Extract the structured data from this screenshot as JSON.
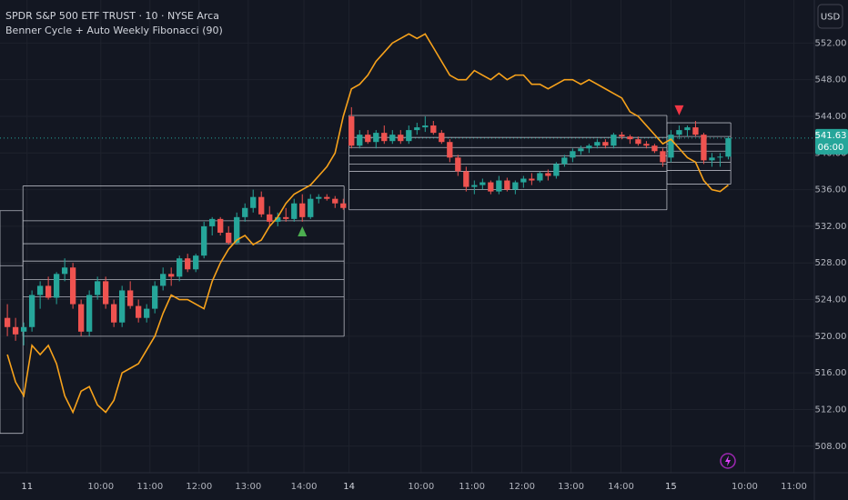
{
  "chart_data": {
    "type": "candlestick",
    "title": "SPDR S&P 500 ETF TRUST · 10 · NYSE Arca",
    "subtitle": "Benner Cycle + Auto Weekly Fibonacci (90)",
    "currency": "USD",
    "up_color": "#26a69a",
    "down_color": "#ef5350",
    "x": [
      0,
      1,
      2,
      3,
      4,
      5,
      6,
      7,
      8,
      9,
      10,
      11,
      12,
      13,
      14,
      15,
      16,
      17,
      18,
      19,
      20,
      21,
      22,
      23,
      24,
      25,
      26,
      27,
      28,
      29,
      30,
      31,
      32,
      33,
      34,
      35,
      36,
      37,
      38,
      39,
      40,
      41,
      42,
      43,
      44,
      45,
      46,
      47,
      48,
      49,
      50,
      51,
      52,
      53,
      54,
      55,
      56,
      57,
      58,
      59,
      60,
      61,
      62,
      63,
      64,
      65,
      66,
      67,
      68,
      69,
      70,
      71,
      72,
      73,
      74,
      75,
      76,
      77,
      78,
      79,
      80,
      81,
      82,
      83,
      84,
      85,
      86,
      87,
      88
    ],
    "ohlc": [
      [
        522,
        523.5,
        520,
        521
      ],
      [
        521,
        522,
        519.5,
        520.2
      ],
      [
        520.5,
        521.5,
        519,
        521
      ],
      [
        521,
        525,
        520.5,
        524.5
      ],
      [
        524.5,
        526,
        523,
        525.5
      ],
      [
        525.5,
        526.5,
        524,
        524.2
      ],
      [
        524.2,
        527,
        523.5,
        526.8
      ],
      [
        526.8,
        528.5,
        526,
        527.5
      ],
      [
        527.5,
        528,
        523,
        523.5
      ],
      [
        523.5,
        524,
        520,
        520.5
      ],
      [
        520.5,
        525,
        520,
        524.5
      ],
      [
        524.5,
        526.5,
        524,
        526
      ],
      [
        526,
        526.5,
        523,
        523.5
      ],
      [
        523.5,
        524,
        521,
        521.5
      ],
      [
        521.5,
        525.5,
        521,
        525
      ],
      [
        525,
        526,
        523,
        523.3
      ],
      [
        523.3,
        524,
        521.5,
        522
      ],
      [
        522,
        523.5,
        521.5,
        523
      ],
      [
        523,
        526,
        522.5,
        525.5
      ],
      [
        525.5,
        527.5,
        525,
        526.8
      ],
      [
        526.8,
        527.5,
        525.5,
        526.5
      ],
      [
        526.5,
        528.8,
        526,
        528.5
      ],
      [
        528.5,
        529,
        527,
        527.3
      ],
      [
        527.3,
        529,
        527,
        528.8
      ],
      [
        528.8,
        532.5,
        528.5,
        532
      ],
      [
        532,
        533,
        531,
        532.8
      ],
      [
        532.8,
        533,
        531,
        531.3
      ],
      [
        531.3,
        532,
        530,
        530.2
      ],
      [
        530.2,
        533.5,
        530,
        533
      ],
      [
        533,
        534.5,
        532.5,
        534
      ],
      [
        534,
        536,
        533.5,
        535.2
      ],
      [
        535.2,
        535.8,
        533,
        533.3
      ],
      [
        533.3,
        534.2,
        532,
        532.5
      ],
      [
        532.5,
        533.5,
        532,
        533
      ],
      [
        533,
        534,
        532.5,
        532.8
      ],
      [
        532.8,
        535,
        532.5,
        534.5
      ],
      [
        534.5,
        535.5,
        532.5,
        533
      ],
      [
        533,
        535.5,
        532.8,
        535
      ],
      [
        535,
        535.5,
        534.5,
        535.2
      ],
      [
        535.2,
        535.5,
        534.8,
        535
      ],
      [
        535,
        535.3,
        534,
        534.5
      ],
      [
        534.5,
        535,
        533.8,
        534
      ],
      [
        544,
        545,
        540.5,
        540.8
      ],
      [
        540.8,
        542.5,
        540.5,
        542
      ],
      [
        542,
        542.5,
        541,
        541.2
      ],
      [
        541.2,
        542.5,
        540.5,
        542.2
      ],
      [
        542.2,
        543,
        541,
        541.3
      ],
      [
        541.3,
        542.5,
        541,
        542
      ],
      [
        542,
        542.5,
        541,
        541.3
      ],
      [
        541.3,
        543,
        541,
        542.5
      ],
      [
        542.5,
        543.3,
        542,
        542.8
      ],
      [
        542.8,
        544,
        542.3,
        543
      ],
      [
        543,
        543.5,
        542,
        542.2
      ],
      [
        542.2,
        542.5,
        541,
        541.2
      ],
      [
        541.2,
        541.5,
        539,
        539.5
      ],
      [
        539.5,
        539.8,
        537.5,
        538
      ],
      [
        538,
        538.5,
        535.8,
        536.3
      ],
      [
        536.3,
        537,
        535.5,
        536.5
      ],
      [
        536.5,
        537.2,
        536,
        536.8
      ],
      [
        536.8,
        537,
        535.5,
        535.8
      ],
      [
        535.8,
        537.5,
        535.5,
        537
      ],
      [
        537,
        537.3,
        535.8,
        536
      ],
      [
        536,
        537,
        535.5,
        536.8
      ],
      [
        536.8,
        537.5,
        536.2,
        537.2
      ],
      [
        537.2,
        537.8,
        536.5,
        537
      ],
      [
        537,
        538,
        536.8,
        537.8
      ],
      [
        537.8,
        538.2,
        537,
        537.5
      ],
      [
        537.5,
        539,
        537.2,
        538.8
      ],
      [
        538.8,
        539.8,
        538.5,
        539.5
      ],
      [
        539.5,
        540.5,
        539,
        540.2
      ],
      [
        540.2,
        540.8,
        539.8,
        540.5
      ],
      [
        540.5,
        541,
        540,
        540.8
      ],
      [
        540.8,
        541.5,
        540.5,
        541.2
      ],
      [
        541.2,
        541.5,
        540.5,
        540.8
      ],
      [
        540.8,
        542.2,
        540.5,
        542
      ],
      [
        542,
        542.3,
        541.5,
        541.8
      ],
      [
        541.8,
        542,
        541,
        541.5
      ],
      [
        541.5,
        541.8,
        540.8,
        541
      ],
      [
        541,
        541.3,
        540.5,
        540.8
      ],
      [
        540.8,
        541,
        540,
        540.2
      ],
      [
        540.2,
        540.5,
        538.5,
        539
      ],
      [
        539.5,
        542.5,
        539,
        542
      ],
      [
        542,
        543,
        541.5,
        542.5
      ],
      [
        542.5,
        543,
        541.8,
        542.8
      ],
      [
        542.8,
        543.5,
        541.8,
        542
      ],
      [
        542,
        542.2,
        538.8,
        539.2
      ],
      [
        539.2,
        540,
        538.5,
        539.5
      ],
      [
        539.5,
        540,
        538.5,
        539.6
      ],
      [
        539.6,
        541.8,
        539.3,
        541.63
      ]
    ],
    "cycle": {
      "color": "#f7a21b",
      "values": [
        518,
        515,
        513.5,
        519,
        518,
        519,
        517,
        513.5,
        511.7,
        514,
        514.5,
        512.5,
        511.7,
        513,
        516,
        516.5,
        517,
        518.5,
        520,
        522.5,
        524.5,
        524,
        524,
        523.5,
        523,
        526,
        528,
        529.5,
        530.5,
        531,
        530,
        530.5,
        532,
        533,
        534.5,
        535.5,
        536,
        536.5,
        537.5,
        538.5,
        540,
        544,
        547,
        547.5,
        548.5,
        550,
        551,
        552,
        552.5,
        553,
        552.5,
        553,
        551.5,
        550,
        548.5,
        548,
        548,
        549,
        548.5,
        548,
        548.7,
        548,
        548.5,
        548.5,
        547.5,
        547.5,
        547,
        547.5,
        548,
        548,
        547.5,
        548,
        547.5,
        547,
        546.5,
        546,
        544.5,
        544,
        543,
        542,
        541,
        541.5,
        540.5,
        539.5,
        539,
        537,
        536,
        535.8,
        536.5
      ]
    },
    "fib_boxes": [
      {
        "x": [
          -0.9,
          1.9
        ],
        "levels": [
          533.7,
          527.7,
          509.4
        ]
      },
      {
        "x": [
          1.9,
          41.1
        ],
        "levels": [
          536.4,
          532.6,
          530.1,
          528.2,
          526.2,
          524.3,
          520.0
        ]
      },
      {
        "x": [
          41.7,
          80.5
        ],
        "levels": [
          544.1,
          541.7,
          540.6,
          539.7,
          538.8,
          538.0,
          536.0,
          533.8
        ]
      },
      {
        "x": [
          80.5,
          88.3
        ],
        "levels": [
          543.3,
          541.8,
          541.0,
          540.2,
          539.0,
          538.1,
          536.6
        ]
      }
    ],
    "signals": [
      {
        "x": 36,
        "y": 531.4,
        "direction": "up",
        "color": "#4caf50"
      },
      {
        "x": 82,
        "y": 544.7,
        "direction": "down",
        "color": "#f23645"
      }
    ],
    "last_price": 541.63,
    "countdown": "06:00",
    "xlim": [
      -0.9,
      98.5
    ],
    "ylim": [
      505.1,
      556.7
    ],
    "yticks": [
      {
        "value": 508,
        "label": "508.00"
      },
      {
        "value": 512,
        "label": "512.00"
      },
      {
        "value": 516,
        "label": "516.00"
      },
      {
        "value": 520,
        "label": "520.00"
      },
      {
        "value": 524,
        "label": "524.00"
      },
      {
        "value": 528,
        "label": "528.00"
      },
      {
        "value": 532,
        "label": "532.00"
      },
      {
        "value": 536,
        "label": "536.00"
      },
      {
        "value": 540,
        "label": "540.00"
      },
      {
        "value": 544,
        "label": "544.00"
      },
      {
        "value": 548,
        "label": "548.00"
      },
      {
        "value": 552,
        "label": "552.00"
      }
    ],
    "xticks": [
      {
        "value": 2.4,
        "label": "11"
      },
      {
        "value": 11.4,
        "label": "10:00"
      },
      {
        "value": 17.4,
        "label": "11:00"
      },
      {
        "value": 23.4,
        "label": "12:00"
      },
      {
        "value": 29.4,
        "label": "13:00"
      },
      {
        "value": 36.2,
        "label": "14:00"
      },
      {
        "value": 41.7,
        "label": "14"
      },
      {
        "value": 50.5,
        "label": "10:00"
      },
      {
        "value": 56.7,
        "label": "11:00"
      },
      {
        "value": 62.8,
        "label": "12:00"
      },
      {
        "value": 68.8,
        "label": "13:00"
      },
      {
        "value": 74.9,
        "label": "14:00"
      },
      {
        "value": 81,
        "label": "15"
      },
      {
        "value": 90,
        "label": "10:00"
      },
      {
        "value": 96,
        "label": "11:00"
      }
    ],
    "grid": true
  }
}
